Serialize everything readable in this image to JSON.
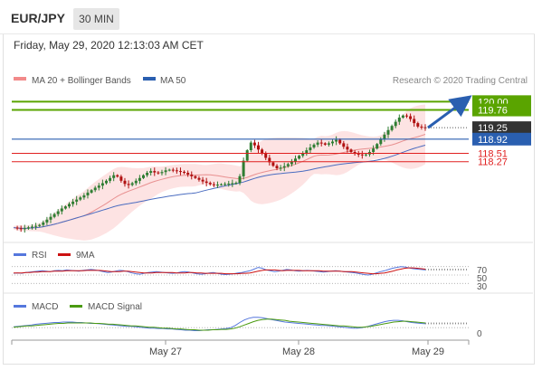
{
  "header": {
    "symbol": "EUR/JPY",
    "timeframe": "30 MIN",
    "datetime": "Friday, May 29, 2020 12:13:03 AM CET"
  },
  "colors": {
    "resistance": "#5aa400",
    "support": "#e02020",
    "current": "#333333",
    "pivot": "#2a5fb0",
    "bollinger": "#f8b0b0",
    "ma20": "#e89090",
    "ma50": "#4a6cc0",
    "candle_up": "#2e7d32",
    "candle_down": "#b01010",
    "rsi": "#5577dd",
    "rsi_ma": "#cc1111",
    "macd": "#5577dd",
    "macd_signal": "#4a9a10",
    "arrow": "#2a5fb0"
  },
  "chart_data": [
    {
      "type": "candlestick",
      "legend": [
        {
          "name": "MA 20 + Bollinger Bands",
          "color": "#f28a8a"
        },
        {
          "name": "MA 50",
          "color": "#2a5fb0"
        }
      ],
      "legend_placement": "top-left",
      "watermark": "Research © 2020 Trading Central",
      "x_ticks": [
        "May 27",
        "May 28",
        "May 29"
      ],
      "ylim": [
        116.1,
        120.4
      ],
      "levels": [
        {
          "value": 120.0,
          "label": "120.00",
          "kind": "resistance"
        },
        {
          "value": 119.76,
          "label": "119.76",
          "kind": "resistance"
        },
        {
          "value": 119.25,
          "label": "119.25",
          "kind": "current"
        },
        {
          "value": 118.92,
          "label": "118.92",
          "kind": "pivot"
        },
        {
          "value": 118.51,
          "label": "118.51",
          "kind": "support"
        },
        {
          "value": 118.27,
          "label": "118.27",
          "kind": "support"
        }
      ],
      "close_series": [
        116.37,
        116.35,
        116.33,
        116.35,
        116.38,
        116.4,
        116.42,
        116.45,
        116.52,
        116.6,
        116.68,
        116.76,
        116.84,
        116.92,
        116.98,
        117.05,
        117.12,
        117.18,
        117.24,
        117.3,
        117.38,
        117.45,
        117.52,
        117.58,
        117.65,
        117.72,
        117.8,
        117.88,
        117.84,
        117.72,
        117.63,
        117.6,
        117.65,
        117.72,
        117.8,
        117.88,
        117.95,
        118.0,
        117.96,
        117.94,
        117.97,
        118.02,
        118.04,
        118.02,
        118.0,
        117.98,
        117.95,
        117.9,
        117.85,
        117.8,
        117.75,
        117.7,
        117.66,
        117.62,
        117.6,
        117.61,
        117.62,
        117.63,
        117.64,
        117.65,
        117.66,
        117.85,
        118.3,
        118.6,
        118.82,
        118.74,
        118.62,
        118.5,
        118.38,
        118.25,
        118.15,
        118.08,
        118.1,
        118.14,
        118.2,
        118.28,
        118.36,
        118.44,
        118.52,
        118.6,
        118.68,
        118.76,
        118.82,
        118.8,
        118.76,
        118.8,
        118.85,
        118.9,
        118.8,
        118.7,
        118.62,
        118.55,
        118.5,
        118.48,
        118.46,
        118.48,
        118.55,
        118.65,
        118.78,
        118.92,
        119.05,
        119.18,
        119.3,
        119.42,
        119.54,
        119.6,
        119.58,
        119.5,
        119.38,
        119.28,
        119.26,
        119.25
      ],
      "forecast_arrow": {
        "from": 119.25,
        "to": 120.0
      }
    },
    {
      "type": "line",
      "legend": [
        {
          "name": "RSI",
          "color": "#5577dd"
        },
        {
          "name": "9MA",
          "color": "#cc1111"
        }
      ],
      "y_ticks": [
        "70",
        "50",
        "30"
      ],
      "ylim": [
        20,
        80
      ],
      "series": [
        {
          "name": "RSI",
          "values": [
            54,
            55,
            54,
            56,
            57,
            58,
            59,
            60,
            59,
            58,
            60,
            61,
            60,
            62,
            61,
            60,
            59,
            61,
            62,
            63,
            62,
            60,
            58,
            56,
            57,
            59,
            61,
            60,
            58,
            55,
            53,
            52,
            54,
            56,
            57,
            58,
            57,
            56,
            55,
            54,
            55,
            57,
            58,
            57,
            55,
            53,
            52,
            53,
            55,
            56,
            54,
            52,
            51,
            52,
            53,
            55,
            56,
            58,
            60,
            64,
            68,
            66,
            62,
            60,
            58,
            59,
            61,
            63,
            62,
            60,
            59,
            60,
            61,
            60,
            59,
            58,
            57,
            58,
            59,
            60,
            59,
            58,
            57,
            56,
            55,
            53,
            51,
            50,
            52,
            55,
            58,
            60,
            63,
            66,
            68,
            70,
            69,
            67,
            65,
            64,
            63,
            62
          ]
        },
        {
          "name": "9MA",
          "values": [
            55,
            55,
            55,
            56,
            56,
            57,
            57,
            58,
            58,
            58,
            59,
            59,
            59,
            60,
            60,
            60,
            60,
            60,
            61,
            61,
            61,
            61,
            60,
            59,
            58,
            58,
            58,
            59,
            59,
            58,
            57,
            56,
            55,
            55,
            55,
            56,
            56,
            56,
            56,
            56,
            55,
            55,
            55,
            56,
            56,
            55,
            55,
            54,
            54,
            54,
            54,
            54,
            53,
            53,
            53,
            53,
            54,
            54,
            55,
            57,
            59,
            61,
            62,
            62,
            62,
            61,
            60,
            61,
            61,
            61,
            61,
            60,
            60,
            60,
            60,
            60,
            59,
            59,
            59,
            59,
            59,
            58,
            58,
            58,
            57,
            56,
            55,
            54,
            53,
            53,
            54,
            55,
            57,
            59,
            62,
            64,
            66,
            67,
            67,
            66,
            65,
            64
          ]
        }
      ]
    },
    {
      "type": "line",
      "legend": [
        {
          "name": "MACD",
          "color": "#5577dd"
        },
        {
          "name": "MACD Signal",
          "color": "#4a9a10"
        }
      ],
      "y_ticks": [
        "0"
      ],
      "ylim": [
        -0.25,
        0.3
      ],
      "series": [
        {
          "name": "MACD",
          "values": [
            0.02,
            0.03,
            0.04,
            0.05,
            0.06,
            0.08,
            0.09,
            0.1,
            0.11,
            0.12,
            0.12,
            0.13,
            0.13,
            0.13,
            0.12,
            0.12,
            0.11,
            0.1,
            0.1,
            0.09,
            0.08,
            0.07,
            0.06,
            0.05,
            0.04,
            0.03,
            0.03,
            0.02,
            0.01,
            0.0,
            -0.01,
            -0.01,
            -0.02,
            -0.02,
            -0.03,
            -0.03,
            -0.04,
            -0.05,
            -0.06,
            -0.06,
            -0.07,
            -0.07,
            -0.06,
            -0.05,
            -0.05,
            -0.04,
            -0.03,
            -0.02,
            0.0,
            0.05,
            0.12,
            0.18,
            0.22,
            0.24,
            0.24,
            0.23,
            0.21,
            0.19,
            0.17,
            0.15,
            0.13,
            0.12,
            0.11,
            0.1,
            0.09,
            0.08,
            0.07,
            0.06,
            0.05,
            0.05,
            0.04,
            0.03,
            0.02,
            0.01,
            0.0,
            -0.01,
            -0.01,
            0.0,
            0.02,
            0.05,
            0.08,
            0.11,
            0.14,
            0.16,
            0.17,
            0.17,
            0.16,
            0.14,
            0.12,
            0.11,
            0.1,
            0.09
          ]
        },
        {
          "name": "MACD Signal",
          "values": [
            0.01,
            0.02,
            0.03,
            0.04,
            0.04,
            0.05,
            0.06,
            0.07,
            0.08,
            0.09,
            0.1,
            0.1,
            0.11,
            0.11,
            0.11,
            0.11,
            0.11,
            0.11,
            0.1,
            0.1,
            0.09,
            0.08,
            0.08,
            0.07,
            0.06,
            0.05,
            0.04,
            0.04,
            0.03,
            0.02,
            0.01,
            0.01,
            0.0,
            -0.01,
            -0.01,
            -0.02,
            -0.03,
            -0.03,
            -0.04,
            -0.05,
            -0.05,
            -0.06,
            -0.06,
            -0.06,
            -0.05,
            -0.05,
            -0.04,
            -0.04,
            -0.03,
            -0.01,
            0.02,
            0.06,
            0.1,
            0.14,
            0.17,
            0.19,
            0.2,
            0.2,
            0.19,
            0.18,
            0.17,
            0.15,
            0.14,
            0.13,
            0.12,
            0.11,
            0.1,
            0.09,
            0.08,
            0.07,
            0.06,
            0.05,
            0.04,
            0.04,
            0.03,
            0.02,
            0.01,
            0.01,
            0.02,
            0.03,
            0.05,
            0.07,
            0.09,
            0.11,
            0.13,
            0.14,
            0.15,
            0.15,
            0.14,
            0.13,
            0.12,
            0.11
          ]
        }
      ]
    }
  ]
}
